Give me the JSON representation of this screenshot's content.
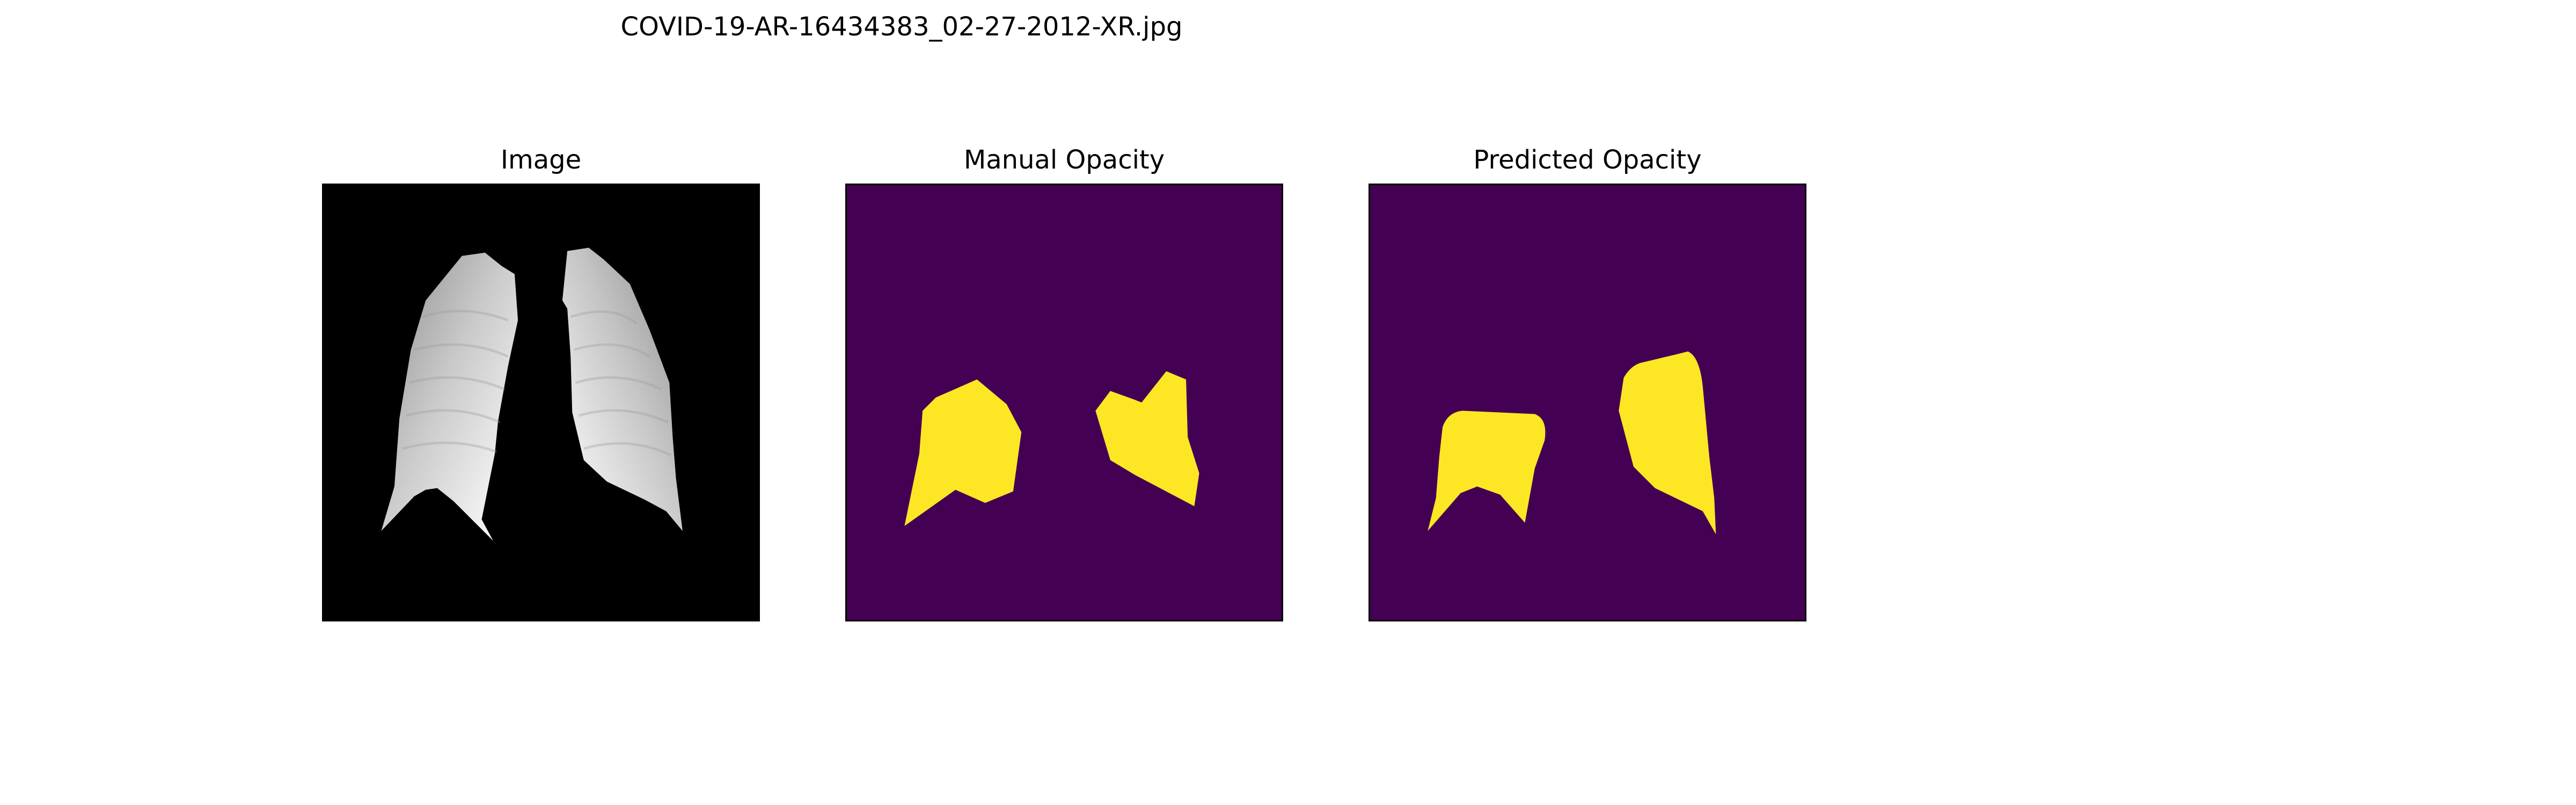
{
  "figure": {
    "title": "COVID-19-AR-16434383_02-27-2012-XR.jpg"
  },
  "panels": [
    {
      "title": "Image",
      "background": "#000000",
      "content": "grayscale chest x-ray, lungs masked"
    },
    {
      "title": "Manual Opacity",
      "background": "#440154",
      "mask_color": "#fde725"
    },
    {
      "title": "Predicted Opacity",
      "background": "#440154",
      "mask_color": "#fde725"
    }
  ],
  "colors": {
    "viridis_low": "#440154",
    "viridis_high": "#fde725",
    "image_background": "#000000"
  }
}
